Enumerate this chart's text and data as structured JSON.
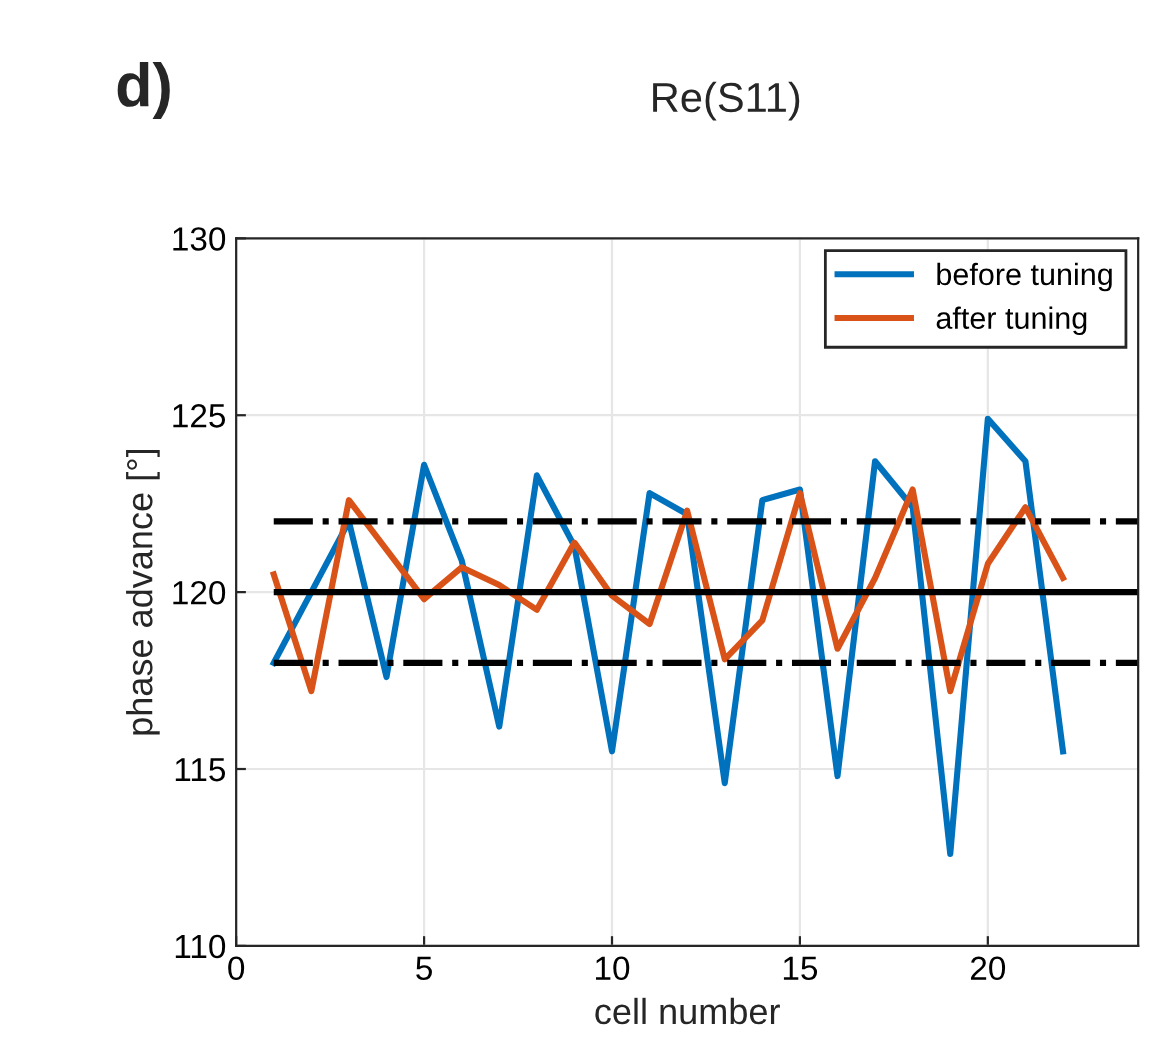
{
  "chart_data": {
    "type": "line",
    "xlabel": "cell number",
    "ylabel": "phase advance [°]",
    "x": [
      1,
      2,
      3,
      4,
      5,
      6,
      7,
      8,
      9,
      10,
      11,
      12,
      13,
      14,
      15,
      16,
      17,
      18,
      19,
      20,
      21,
      22
    ],
    "series": [
      {
        "name": "before tuning",
        "color": "#0072bd",
        "values": [
          118.0,
          120.0,
          122.0,
          117.6,
          123.6,
          120.9,
          116.2,
          123.3,
          121.3,
          115.5,
          122.8,
          122.2,
          114.6,
          122.6,
          122.9,
          114.8,
          123.7,
          122.4,
          112.6,
          124.9,
          123.7,
          115.5
        ]
      },
      {
        "name": "after tuning",
        "color": "#d95319",
        "values": [
          120.5,
          117.2,
          122.6,
          121.2,
          119.8,
          120.7,
          120.2,
          119.5,
          121.4,
          119.9,
          119.1,
          122.3,
          118.1,
          119.2,
          122.8,
          118.4,
          120.4,
          122.9,
          117.2,
          120.8,
          122.4,
          120.4
        ]
      }
    ],
    "ref_lines": [
      {
        "axis": "y",
        "value": 122,
        "color": "#000000",
        "line_style": "dashdot"
      },
      {
        "axis": "y",
        "value": 120,
        "color": "#000000",
        "line_style": "solid"
      },
      {
        "axis": "y",
        "value": 118,
        "color": "#000000",
        "line_style": "dashdot"
      }
    ],
    "xlim": [
      0,
      24
    ],
    "xticks": [
      0,
      5,
      10,
      15,
      20
    ],
    "ylim": [
      110,
      130
    ],
    "yticks": [
      110,
      115,
      120,
      125,
      130
    ],
    "grid": true,
    "legend": "top right",
    "marker": "none",
    "line_style": "solid",
    "annotations": [
      "d)",
      "Re(S11)"
    ]
  }
}
